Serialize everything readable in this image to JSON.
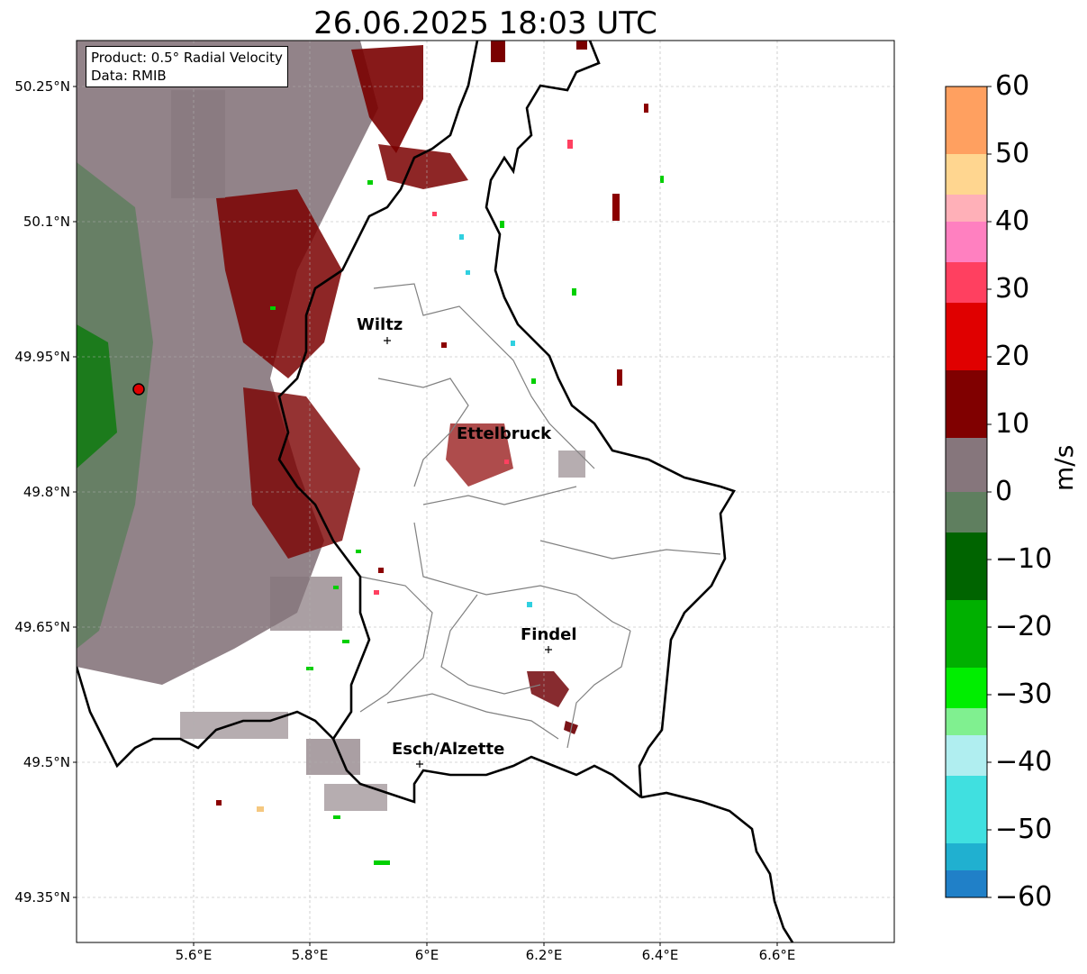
{
  "title": "26.06.2025 18:03 UTC",
  "info": {
    "product": "Product: 0.5° Radial Velocity",
    "data": "Data: RMIB"
  },
  "axes": {
    "lat_labels": [
      "50.25°N",
      "50.1°N",
      "49.95°N",
      "49.8°N",
      "49.65°N",
      "49.5°N",
      "49.35°N"
    ],
    "lon_labels": [
      "5.6°E",
      "5.8°E",
      "6°E",
      "6.2°E",
      "6.4°E",
      "6.6°E"
    ],
    "lon_range": [
      5.4,
      6.8
    ],
    "lat_range": [
      49.3,
      50.3
    ]
  },
  "colorbar": {
    "unit": "m/s",
    "ticks": [
      "60",
      "50",
      "40",
      "30",
      "20",
      "10",
      "0",
      "−10",
      "−20",
      "−30",
      "−40",
      "−50",
      "−60"
    ],
    "range": [
      -60,
      60
    ]
  },
  "cities": [
    {
      "name": "Wiltz",
      "lon": 5.935,
      "lat": 49.966
    },
    {
      "name": "Ettelbruck",
      "lon": 6.1,
      "lat": 49.848
    },
    {
      "name": "Findel",
      "lon": 6.21,
      "lat": 49.627
    },
    {
      "name": "Esch/Alzette",
      "lon": 5.99,
      "lat": 49.497
    }
  ],
  "radar_site": {
    "lon": 5.505,
    "lat": 49.914
  }
}
